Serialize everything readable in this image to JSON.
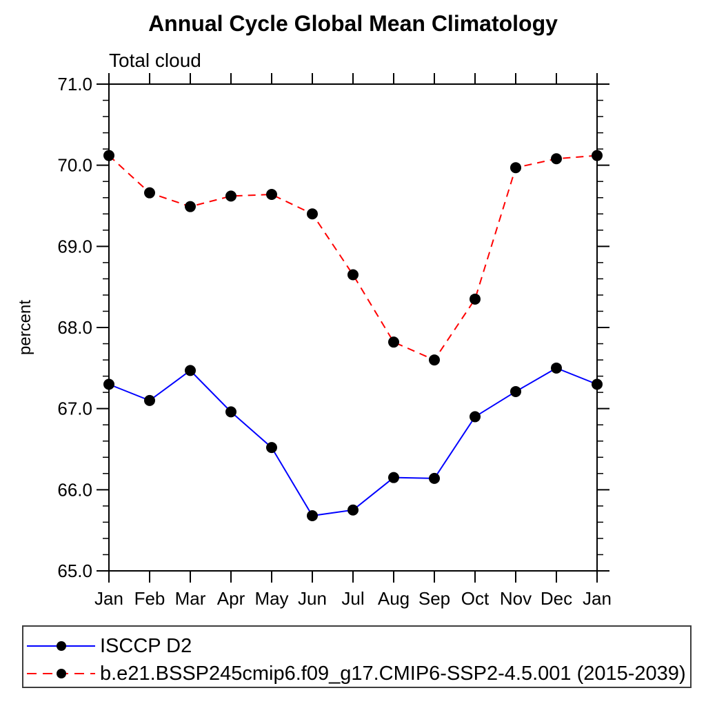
{
  "chart_data": {
    "type": "line",
    "title": "Annual Cycle Global Mean Climatology",
    "subtitle": "Total cloud",
    "ylabel": "percent",
    "categories": [
      "Jan",
      "Feb",
      "Mar",
      "Apr",
      "May",
      "Jun",
      "Jul",
      "Aug",
      "Sep",
      "Oct",
      "Nov",
      "Dec",
      "Jan"
    ],
    "ylim": [
      65.0,
      71.0
    ],
    "ytick_step": 1.0,
    "ytick_minor_step": 0.2,
    "ytick_labels": [
      "65.0",
      "66.0",
      "67.0",
      "68.0",
      "69.0",
      "70.0",
      "71.0"
    ],
    "grid": false,
    "legend_position": "bottom",
    "series": [
      {
        "name": "ISCCP D2",
        "color": "#0000ff",
        "line_style": "solid",
        "marker": "filled-circle",
        "marker_color": "#000000",
        "values": [
          67.3,
          67.1,
          67.47,
          66.96,
          66.52,
          65.68,
          65.75,
          66.15,
          66.14,
          66.9,
          67.21,
          67.5,
          67.3
        ]
      },
      {
        "name": "b.e21.BSSP245cmip6.f09_g17.CMIP6-SSP2-4.5.001 (2015-2039)",
        "color": "#ff0000",
        "line_style": "dashed",
        "marker": "filled-circle",
        "marker_color": "#000000",
        "values": [
          70.12,
          69.66,
          69.49,
          69.62,
          69.64,
          69.4,
          68.65,
          67.82,
          67.6,
          68.35,
          69.97,
          70.08,
          70.12
        ]
      }
    ],
    "colors": {
      "axis": "#000000",
      "tick_text": "#000000",
      "legend_border": "#3c3c3c"
    }
  }
}
